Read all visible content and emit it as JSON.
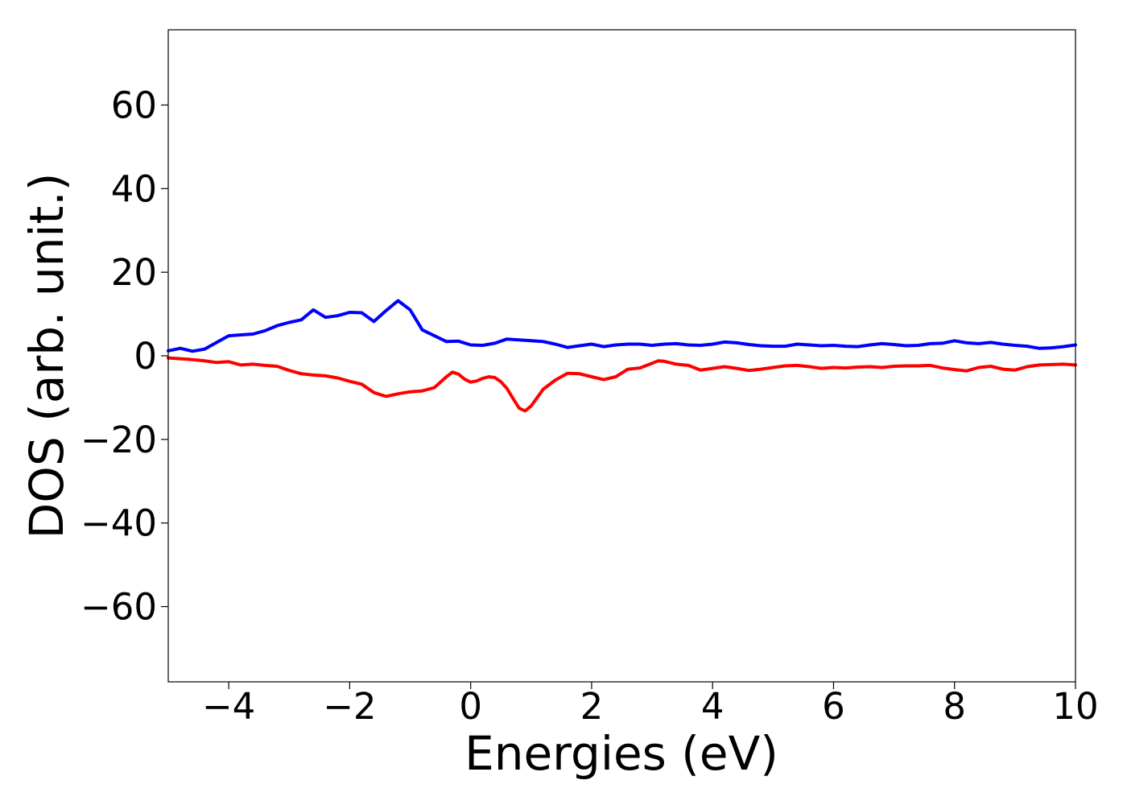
{
  "chart_data": {
    "type": "line",
    "title": "",
    "xlabel": "Energies (eV)",
    "ylabel": "DOS (arb. unit.)",
    "xlim": [
      -5,
      10
    ],
    "ylim": [
      -78,
      78
    ],
    "grid": false,
    "x_ticks": [
      -4,
      -2,
      0,
      2,
      4,
      6,
      8,
      10
    ],
    "x_tick_labels": [
      "−4",
      "−2",
      "0",
      "2",
      "4",
      "6",
      "8",
      "10"
    ],
    "y_ticks": [
      60,
      40,
      20,
      0,
      -20,
      -40,
      -60
    ],
    "y_tick_labels": [
      "60",
      "40",
      "20",
      "0",
      "−20",
      "−40",
      "−60"
    ],
    "series": [
      {
        "color": "#0000ff",
        "points": [
          [
            -5.0,
            1.2
          ],
          [
            -4.8,
            1.8
          ],
          [
            -4.6,
            1.1
          ],
          [
            -4.4,
            1.6
          ],
          [
            -4.2,
            3.2
          ],
          [
            -4.0,
            4.8
          ],
          [
            -3.8,
            5.0
          ],
          [
            -3.6,
            5.2
          ],
          [
            -3.4,
            6.0
          ],
          [
            -3.2,
            7.2
          ],
          [
            -3.0,
            8.0
          ],
          [
            -2.8,
            8.6
          ],
          [
            -2.6,
            11.0
          ],
          [
            -2.4,
            9.2
          ],
          [
            -2.2,
            9.6
          ],
          [
            -2.0,
            10.4
          ],
          [
            -1.8,
            10.3
          ],
          [
            -1.6,
            8.2
          ],
          [
            -1.4,
            10.8
          ],
          [
            -1.2,
            13.2
          ],
          [
            -1.0,
            11.0
          ],
          [
            -0.8,
            6.2
          ],
          [
            -0.6,
            4.8
          ],
          [
            -0.4,
            3.4
          ],
          [
            -0.2,
            3.5
          ],
          [
            0.0,
            2.6
          ],
          [
            0.2,
            2.5
          ],
          [
            0.4,
            3.0
          ],
          [
            0.6,
            4.0
          ],
          [
            0.8,
            3.8
          ],
          [
            1.0,
            3.6
          ],
          [
            1.2,
            3.4
          ],
          [
            1.4,
            2.8
          ],
          [
            1.6,
            2.0
          ],
          [
            1.8,
            2.4
          ],
          [
            2.0,
            2.8
          ],
          [
            2.2,
            2.2
          ],
          [
            2.4,
            2.6
          ],
          [
            2.6,
            2.8
          ],
          [
            2.8,
            2.8
          ],
          [
            3.0,
            2.5
          ],
          [
            3.2,
            2.8
          ],
          [
            3.4,
            2.9
          ],
          [
            3.6,
            2.6
          ],
          [
            3.8,
            2.5
          ],
          [
            4.0,
            2.8
          ],
          [
            4.2,
            3.3
          ],
          [
            4.4,
            3.1
          ],
          [
            4.6,
            2.7
          ],
          [
            4.8,
            2.4
          ],
          [
            5.0,
            2.3
          ],
          [
            5.2,
            2.3
          ],
          [
            5.4,
            2.8
          ],
          [
            5.6,
            2.6
          ],
          [
            5.8,
            2.4
          ],
          [
            6.0,
            2.5
          ],
          [
            6.2,
            2.3
          ],
          [
            6.4,
            2.2
          ],
          [
            6.6,
            2.6
          ],
          [
            6.8,
            2.9
          ],
          [
            7.0,
            2.7
          ],
          [
            7.2,
            2.4
          ],
          [
            7.4,
            2.5
          ],
          [
            7.6,
            2.9
          ],
          [
            7.8,
            3.0
          ],
          [
            8.0,
            3.6
          ],
          [
            8.2,
            3.1
          ],
          [
            8.4,
            2.9
          ],
          [
            8.6,
            3.2
          ],
          [
            8.8,
            2.8
          ],
          [
            9.0,
            2.5
          ],
          [
            9.2,
            2.3
          ],
          [
            9.4,
            1.8
          ],
          [
            9.6,
            1.9
          ],
          [
            9.8,
            2.2
          ],
          [
            10.0,
            2.6
          ]
        ]
      },
      {
        "color": "#ff0000",
        "points": [
          [
            -5.0,
            -0.5
          ],
          [
            -4.8,
            -0.7
          ],
          [
            -4.6,
            -0.9
          ],
          [
            -4.4,
            -1.2
          ],
          [
            -4.2,
            -1.6
          ],
          [
            -4.0,
            -1.4
          ],
          [
            -3.8,
            -2.2
          ],
          [
            -3.6,
            -2.0
          ],
          [
            -3.4,
            -2.3
          ],
          [
            -3.2,
            -2.5
          ],
          [
            -3.0,
            -3.5
          ],
          [
            -2.8,
            -4.3
          ],
          [
            -2.6,
            -4.6
          ],
          [
            -2.4,
            -4.8
          ],
          [
            -2.2,
            -5.3
          ],
          [
            -2.0,
            -6.1
          ],
          [
            -1.8,
            -6.8
          ],
          [
            -1.6,
            -8.8
          ],
          [
            -1.4,
            -9.7
          ],
          [
            -1.2,
            -9.1
          ],
          [
            -1.0,
            -8.6
          ],
          [
            -0.8,
            -8.4
          ],
          [
            -0.6,
            -7.6
          ],
          [
            -0.4,
            -5.0
          ],
          [
            -0.3,
            -3.9
          ],
          [
            -0.2,
            -4.4
          ],
          [
            -0.1,
            -5.6
          ],
          [
            0.0,
            -6.3
          ],
          [
            0.1,
            -6.0
          ],
          [
            0.2,
            -5.4
          ],
          [
            0.3,
            -5.0
          ],
          [
            0.4,
            -5.2
          ],
          [
            0.5,
            -6.2
          ],
          [
            0.6,
            -7.8
          ],
          [
            0.7,
            -10.2
          ],
          [
            0.8,
            -12.5
          ],
          [
            0.9,
            -13.2
          ],
          [
            1.0,
            -12.0
          ],
          [
            1.1,
            -10.0
          ],
          [
            1.2,
            -8.0
          ],
          [
            1.4,
            -5.8
          ],
          [
            1.6,
            -4.2
          ],
          [
            1.8,
            -4.3
          ],
          [
            2.0,
            -5.0
          ],
          [
            2.2,
            -5.7
          ],
          [
            2.4,
            -5.0
          ],
          [
            2.6,
            -3.2
          ],
          [
            2.8,
            -2.9
          ],
          [
            3.0,
            -1.8
          ],
          [
            3.1,
            -1.2
          ],
          [
            3.2,
            -1.3
          ],
          [
            3.4,
            -2.0
          ],
          [
            3.6,
            -2.3
          ],
          [
            3.8,
            -3.4
          ],
          [
            4.0,
            -3.0
          ],
          [
            4.2,
            -2.6
          ],
          [
            4.4,
            -3.0
          ],
          [
            4.6,
            -3.5
          ],
          [
            4.8,
            -3.2
          ],
          [
            5.0,
            -2.8
          ],
          [
            5.2,
            -2.4
          ],
          [
            5.4,
            -2.3
          ],
          [
            5.6,
            -2.6
          ],
          [
            5.8,
            -3.0
          ],
          [
            6.0,
            -2.8
          ],
          [
            6.2,
            -2.9
          ],
          [
            6.4,
            -2.7
          ],
          [
            6.6,
            -2.6
          ],
          [
            6.8,
            -2.8
          ],
          [
            7.0,
            -2.5
          ],
          [
            7.2,
            -2.4
          ],
          [
            7.4,
            -2.4
          ],
          [
            7.6,
            -2.3
          ],
          [
            7.8,
            -2.9
          ],
          [
            8.0,
            -3.3
          ],
          [
            8.2,
            -3.6
          ],
          [
            8.4,
            -2.8
          ],
          [
            8.6,
            -2.5
          ],
          [
            8.8,
            -3.2
          ],
          [
            9.0,
            -3.4
          ],
          [
            9.2,
            -2.6
          ],
          [
            9.4,
            -2.2
          ],
          [
            9.6,
            -2.1
          ],
          [
            9.8,
            -2.0
          ],
          [
            10.0,
            -2.2
          ]
        ]
      }
    ]
  }
}
